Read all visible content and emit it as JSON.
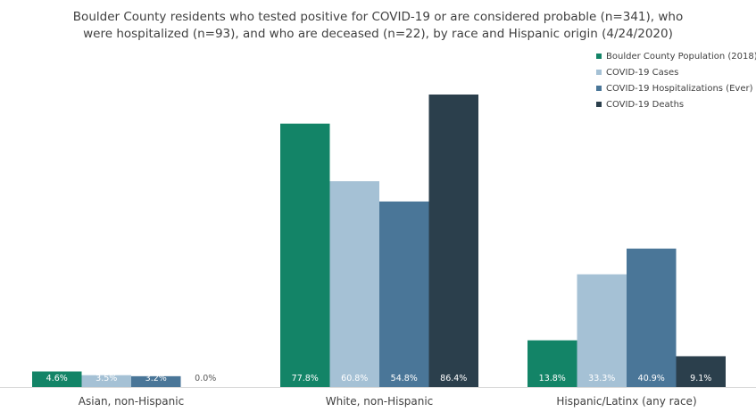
{
  "chart_data": {
    "type": "bar",
    "title_line1": "Boulder County residents who tested positive for COVID-19 or are considered probable (n=341), who",
    "title_line2": "were hospitalized (n=93), and who are deceased (n=22), by race and Hispanic origin (4/24/2020)",
    "categories": [
      "Asian, non-Hispanic",
      "White, non-Hispanic",
      "Hispanic/Latinx (any race)"
    ],
    "series": [
      {
        "name": "Boulder County Population (2018)",
        "color": "#138467",
        "values": [
          4.6,
          77.8,
          13.8
        ],
        "labels": [
          "4.6%",
          "77.8%",
          "13.8%"
        ]
      },
      {
        "name": "COVID-19 Cases",
        "color": "#a5c1d5",
        "values": [
          3.5,
          60.8,
          33.3
        ],
        "labels": [
          "3.5%",
          "60.8%",
          "33.3%"
        ]
      },
      {
        "name": "COVID-19 Hospitalizations (Ever)",
        "color": "#4a7698",
        "values": [
          3.2,
          54.8,
          40.9
        ],
        "labels": [
          "3.2%",
          "54.8%",
          "40.9%"
        ]
      },
      {
        "name": "COVID-19 Deaths",
        "color": "#2b3f4c",
        "values": [
          0.0,
          86.4,
          9.1
        ],
        "labels": [
          "0.0%",
          "86.4%",
          "9.1%"
        ]
      }
    ],
    "ylim": [
      0,
      86.4
    ],
    "grid": false,
    "legend_position": "top-right"
  }
}
